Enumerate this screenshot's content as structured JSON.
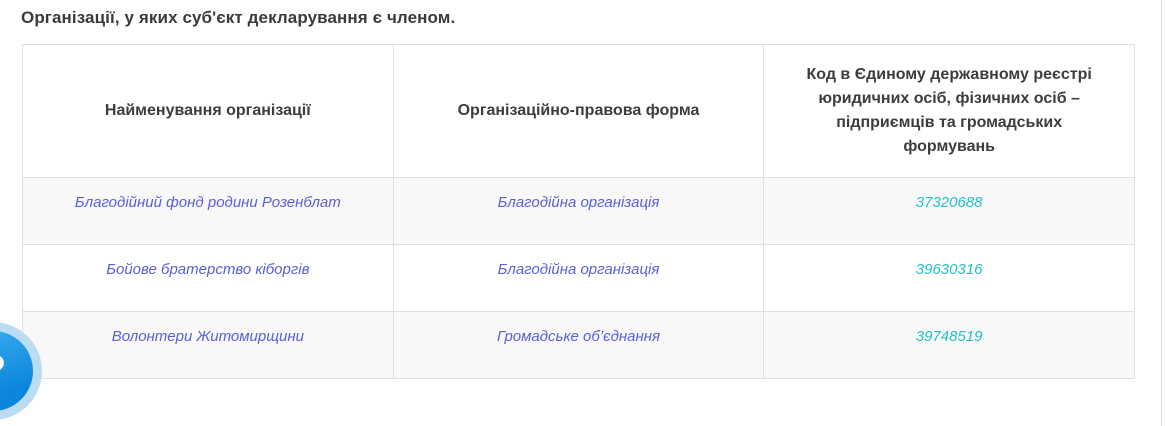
{
  "page": {
    "title": "Організації, у яких суб'єкт декларування є членом."
  },
  "table": {
    "headers": [
      "Найменування організації",
      "Організаційно-правова форма",
      "Код в Єдиному державному реєстрі юридичних осіб, фізичних осіб – підприємців та громадських формувань"
    ],
    "rows": [
      {
        "name": "Благодійний фонд родини Розенблат",
        "form": "Благодійна організація",
        "code": "37320688"
      },
      {
        "name": "Бойове братерство кіборгів",
        "form": "Благодійна організація",
        "code": "39630316"
      },
      {
        "name": "Волонтери Житомирщини",
        "form": "Громадське об’єднання",
        "code": "39748519"
      }
    ]
  },
  "help_widget": {
    "glyph": "?",
    "icon": "question-mark-icon"
  },
  "colors": {
    "org_text_indigo": "#5a5fd7",
    "code_text_teal": "#22c0c7",
    "table_border": "#e0e0e0",
    "row_stripe": "#f8f8f8",
    "heading_text": "#3b3b3b",
    "widget_blue": "#0b86dd",
    "widget_halo": "#bcdcf4"
  }
}
